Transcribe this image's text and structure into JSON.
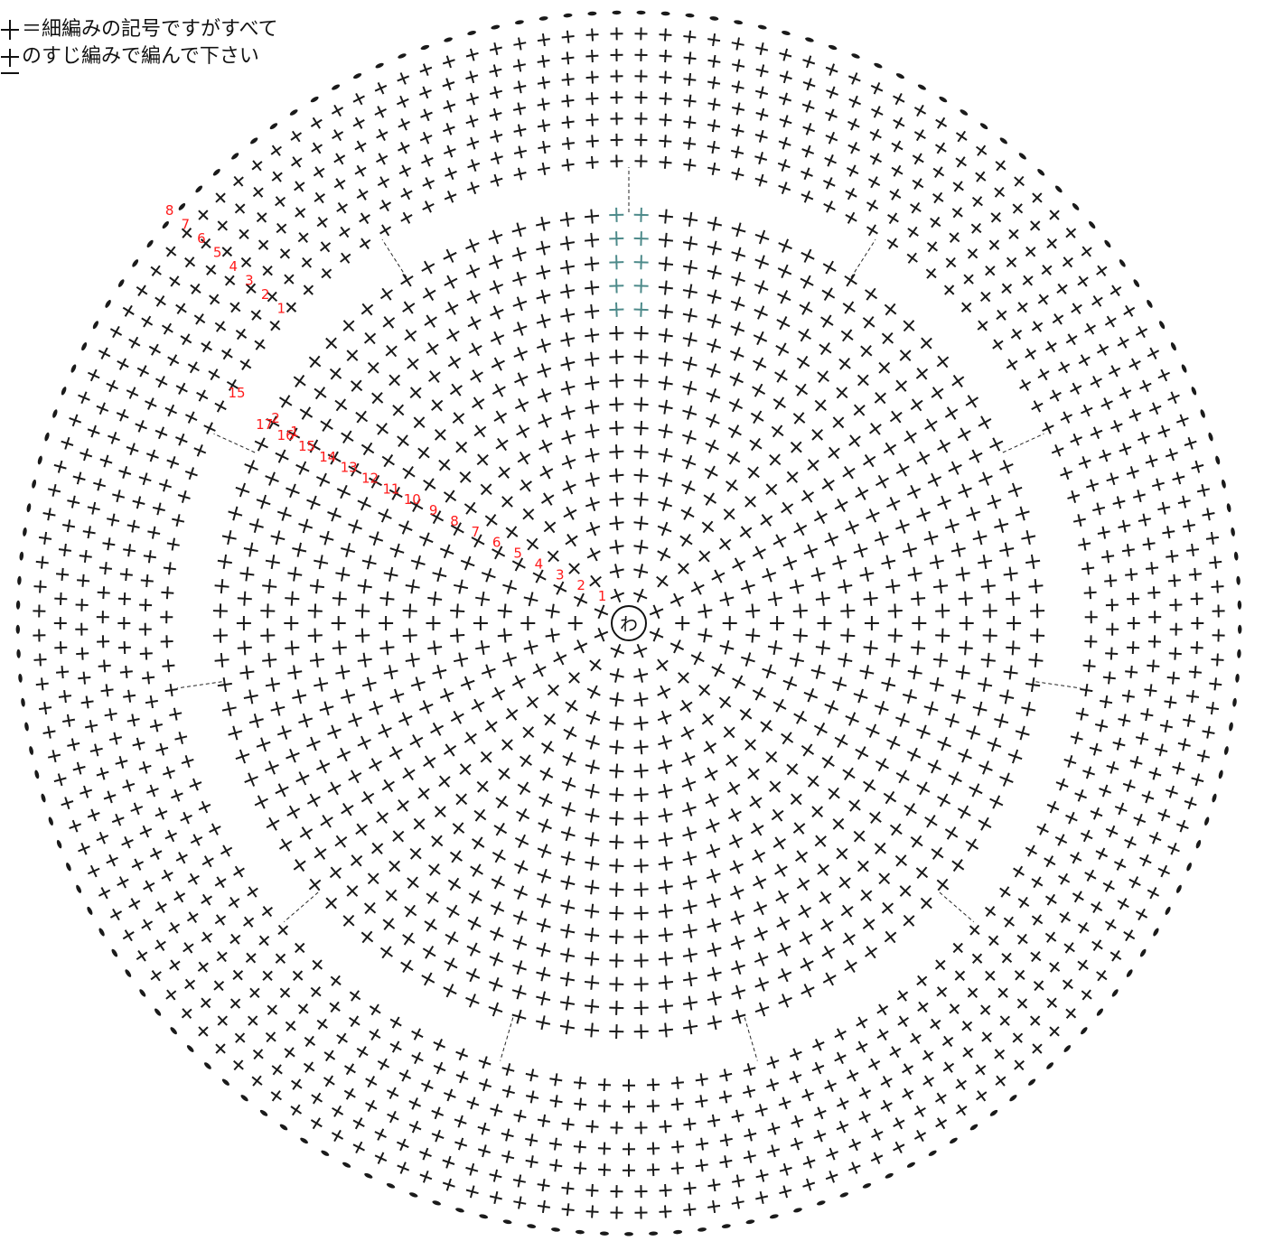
{
  "legend": {
    "line1": "＝細編みの記号ですがすべて",
    "line2": "のすじ編みで編んで下さい"
  },
  "diagram": {
    "center_label": "わ",
    "main_rows": 17,
    "brim_rows": 8,
    "row_labels_main": [
      "1",
      "2",
      "3",
      "4",
      "5",
      "6",
      "7",
      "8",
      "9",
      "10",
      "11",
      "12",
      "13",
      "14",
      "15",
      "16",
      "17"
    ],
    "row_labels_brim": [
      "1",
      "2",
      "3",
      "4",
      "5",
      "6",
      "7",
      "8"
    ],
    "extra_labels": [
      "15",
      "2",
      "1"
    ],
    "colors": {
      "stitch": "#1a1a1a",
      "row_number": "#ff1a1a",
      "start_marker": "#4d8a8a",
      "background": "#ffffff"
    },
    "brim_gap_count": 11
  }
}
